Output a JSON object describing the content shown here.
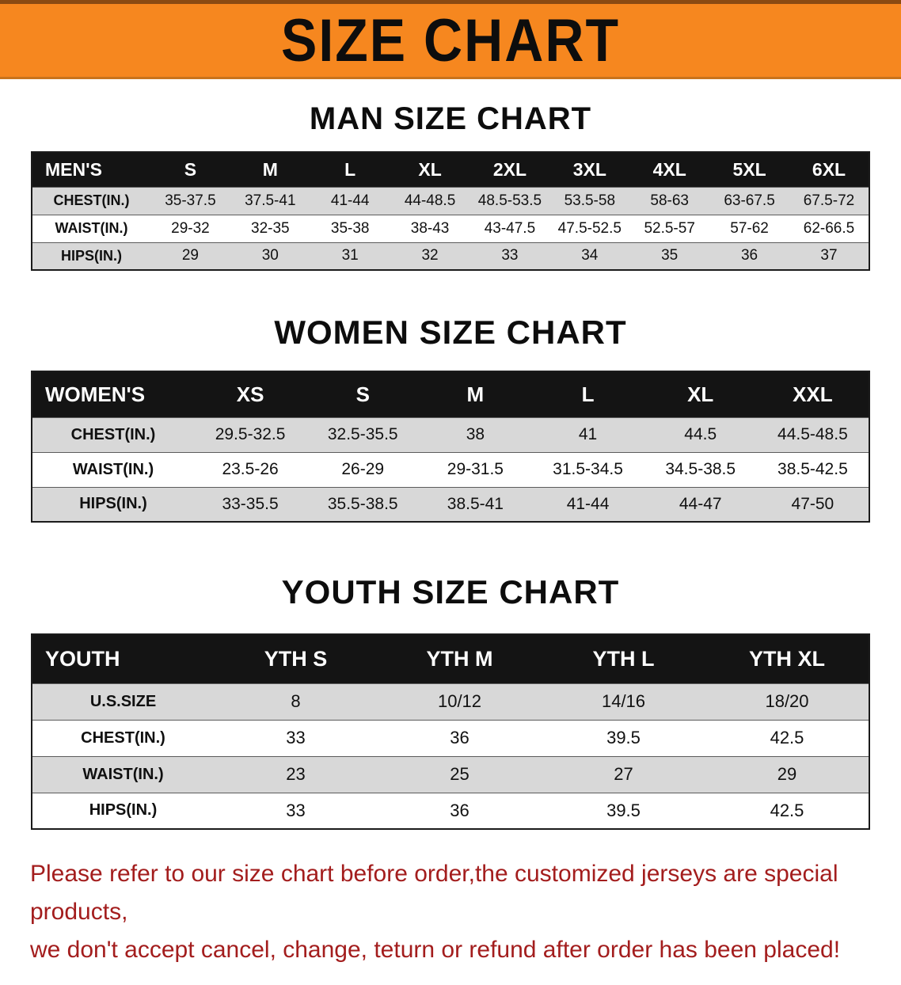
{
  "banner": {
    "title": "SIZE CHART"
  },
  "colors": {
    "banner_bg": "#f6871f",
    "banner_edge_top": "#8a4a12",
    "banner_edge_bottom": "#c9731c",
    "table_header_bg": "#141414",
    "table_header_text": "#ffffff",
    "row_stripe": "#d8d8d8",
    "text": "#111111",
    "disclaimer_text": "#a31d1d"
  },
  "sections": [
    {
      "heading": "MAN SIZE CHART",
      "table": {
        "header": [
          "MEN'S",
          "S",
          "M",
          "L",
          "XL",
          "2XL",
          "3XL",
          "4XL",
          "5XL",
          "6XL"
        ],
        "rows": [
          [
            "CHEST(IN.)",
            "35-37.5",
            "37.5-41",
            "41-44",
            "44-48.5",
            "48.5-53.5",
            "53.5-58",
            "58-63",
            "63-67.5",
            "67.5-72"
          ],
          [
            "WAIST(IN.)",
            "29-32",
            "32-35",
            "35-38",
            "38-43",
            "43-47.5",
            "47.5-52.5",
            "52.5-57",
            "57-62",
            "62-66.5"
          ],
          [
            "HIPS(IN.)",
            "29",
            "30",
            "31",
            "32",
            "33",
            "34",
            "35",
            "36",
            "37"
          ]
        ]
      }
    },
    {
      "heading": "WOMEN SIZE CHART",
      "table": {
        "header": [
          "WOMEN'S",
          "XS",
          "S",
          "M",
          "L",
          "XL",
          "XXL"
        ],
        "rows": [
          [
            "CHEST(IN.)",
            "29.5-32.5",
            "32.5-35.5",
            "38",
            "41",
            "44.5",
            "44.5-48.5"
          ],
          [
            "WAIST(IN.)",
            "23.5-26",
            "26-29",
            "29-31.5",
            "31.5-34.5",
            "34.5-38.5",
            "38.5-42.5"
          ],
          [
            "HIPS(IN.)",
            "33-35.5",
            "35.5-38.5",
            "38.5-41",
            "41-44",
            "44-47",
            "47-50"
          ]
        ]
      }
    },
    {
      "heading": "YOUTH SIZE CHART",
      "table": {
        "header": [
          "YOUTH",
          "YTH S",
          "YTH M",
          "YTH L",
          "YTH XL"
        ],
        "rows": [
          [
            "U.S.SIZE",
            "8",
            "10/12",
            "14/16",
            "18/20"
          ],
          [
            "CHEST(IN.)",
            "33",
            "36",
            "39.5",
            "42.5"
          ],
          [
            "WAIST(IN.)",
            "23",
            "25",
            "27",
            "29"
          ],
          [
            "HIPS(IN.)",
            "33",
            "36",
            "39.5",
            "42.5"
          ]
        ]
      }
    }
  ],
  "disclaimer": {
    "line1": "Please refer to our size chart before order,the customized jerseys are special products,",
    "line2": "we don't accept cancel, change, teturn or refund after order has been placed!"
  }
}
